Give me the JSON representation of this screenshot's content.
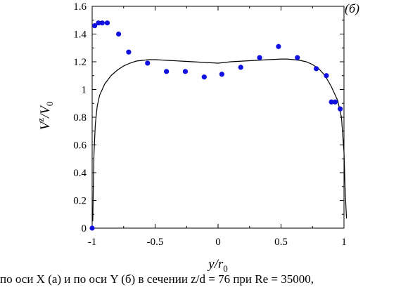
{
  "chart_data": {
    "type": "scatter",
    "panel_tag": "(б)",
    "xlabel": {
      "main": "y/r",
      "sub": "0"
    },
    "ylabel": {
      "main": "V",
      "sup": "z",
      "mid": "/V",
      "sub": "0"
    },
    "xlim": [
      -1,
      1
    ],
    "ylim": [
      0,
      1.6
    ],
    "x_ticks": [
      -1,
      -0.5,
      0,
      0.5,
      1
    ],
    "x_tick_labels": [
      "-1",
      "-0.5",
      "0",
      "0.5",
      "1"
    ],
    "y_ticks": [
      0,
      0.2,
      0.4,
      0.6,
      0.8,
      1,
      1.2,
      1.4,
      1.6
    ],
    "y_tick_labels": [
      "0",
      "0.2",
      "0.4",
      "0.6",
      "0.8",
      "1",
      "1.2",
      "1.4",
      "1.6"
    ],
    "grid": false,
    "series": [
      {
        "kind": "line",
        "color": "#000000",
        "x": [
          -0.995,
          -0.99,
          -0.985,
          -0.975,
          -0.96,
          -0.94,
          -0.9,
          -0.85,
          -0.8,
          -0.75,
          -0.7,
          -0.65,
          -0.6,
          -0.55,
          -0.5,
          -0.4,
          -0.3,
          -0.2,
          -0.1,
          0,
          0.1,
          0.2,
          0.3,
          0.4,
          0.5,
          0.55,
          0.6,
          0.65,
          0.7,
          0.75,
          0.8,
          0.85,
          0.9,
          0.95,
          0.98,
          1.0,
          1.01,
          1.02
        ],
        "y": [
          0.05,
          0.35,
          0.55,
          0.75,
          0.88,
          0.96,
          1.04,
          1.1,
          1.14,
          1.17,
          1.19,
          1.205,
          1.21,
          1.215,
          1.215,
          1.21,
          1.205,
          1.2,
          1.195,
          1.19,
          1.2,
          1.205,
          1.21,
          1.215,
          1.22,
          1.22,
          1.215,
          1.21,
          1.2,
          1.18,
          1.15,
          1.1,
          1.02,
          0.92,
          0.8,
          0.55,
          0.25,
          0.07
        ]
      },
      {
        "kind": "scatter",
        "color": "#1010e0",
        "x": [
          -1.0,
          -0.98,
          -0.95,
          -0.92,
          -0.88,
          -0.79,
          -0.71,
          -0.56,
          -0.41,
          -0.26,
          -0.11,
          0.03,
          0.18,
          0.33,
          0.48,
          0.63,
          0.78,
          0.86,
          0.9,
          0.93,
          0.97
        ],
        "y": [
          0.0,
          1.46,
          1.48,
          1.48,
          1.48,
          1.4,
          1.27,
          1.19,
          1.13,
          1.13,
          1.09,
          1.11,
          1.16,
          1.23,
          1.31,
          1.23,
          1.15,
          1.1,
          0.91,
          0.91,
          0.86
        ]
      }
    ]
  },
  "caption": "по оси X (а) и по оси Y (б) в сечении z/d = 76 при Re = 35000,"
}
